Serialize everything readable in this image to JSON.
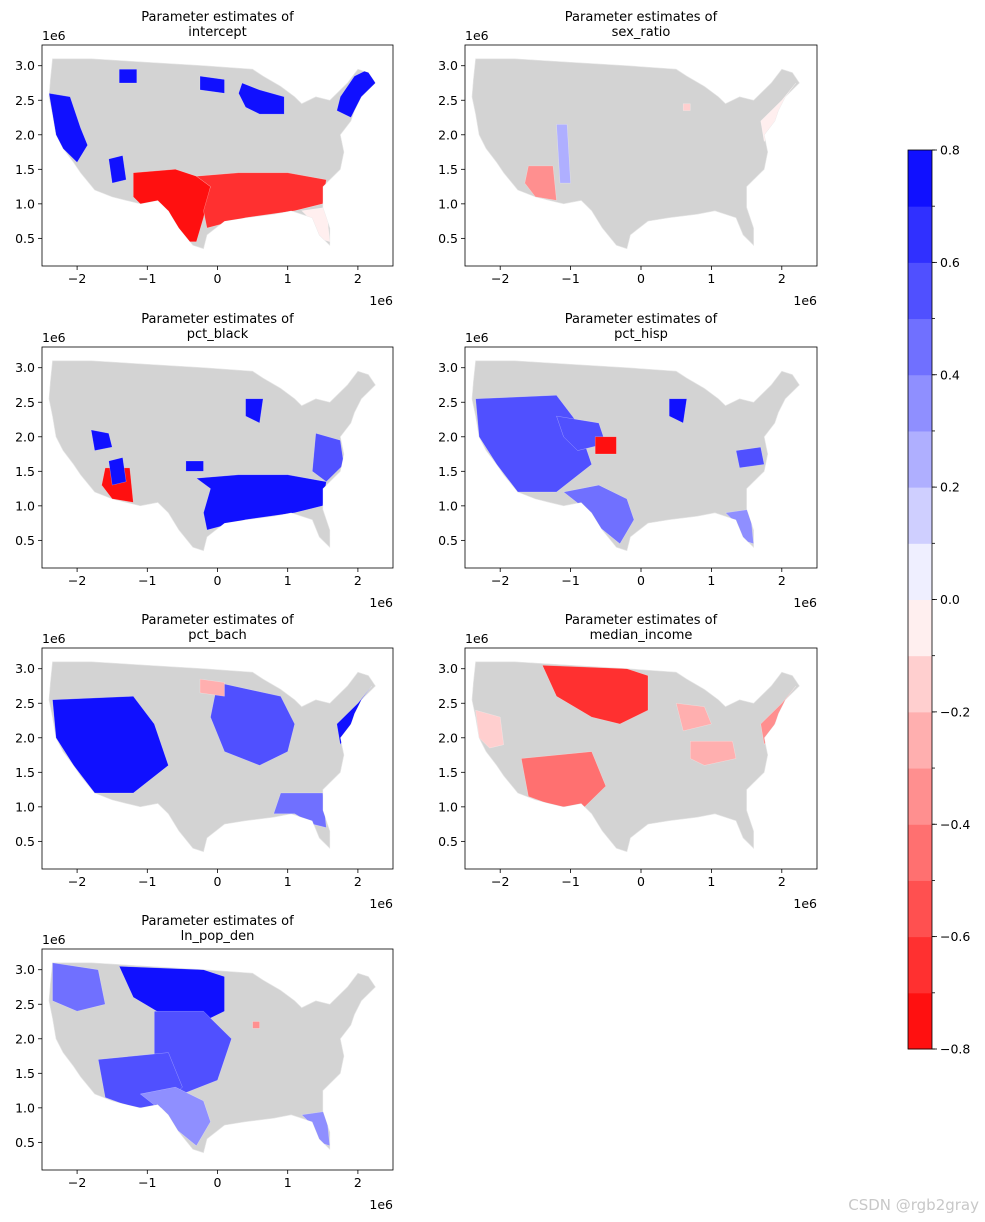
{
  "figure": {
    "watermark": "CSDN @rgb2gray",
    "colors": {
      "positive": "#0000ff",
      "negative": "#ff0000",
      "neutral": "#d3d3d3"
    }
  },
  "axes_common": {
    "x_ticks": [
      "−2",
      "−1",
      "0",
      "1",
      "2"
    ],
    "x_tick_values": [
      -2,
      -1,
      0,
      1,
      2
    ],
    "x_offset_label": "1e6",
    "xlim": [
      -2.5,
      2.5
    ],
    "y_ticks": [
      "0.5",
      "1.0",
      "1.5",
      "2.0",
      "2.5",
      "3.0"
    ],
    "y_tick_values": [
      0.5,
      1.0,
      1.5,
      2.0,
      2.5,
      3.0
    ],
    "y_offset_label": "1e6",
    "ylim": [
      0.1,
      3.3
    ]
  },
  "chart_data": [
    {
      "type": "choropleth",
      "id": "intercept",
      "title_line1": "Parameter estimates of",
      "title_line2": "intercept",
      "regions": [
        {
          "name": "south-central",
          "value": -0.8
        },
        {
          "name": "southeast",
          "value": -0.7
        },
        {
          "name": "florida",
          "value": -0.1
        },
        {
          "name": "california-oregon",
          "value": 0.8
        },
        {
          "name": "nevada-patch",
          "value": 0.8
        },
        {
          "name": "montana-patch",
          "value": 0.8
        },
        {
          "name": "dakota-patch",
          "value": 0.8
        },
        {
          "name": "great-lakes",
          "value": 0.8
        },
        {
          "name": "new-england",
          "value": 0.7
        }
      ]
    },
    {
      "type": "choropleth",
      "id": "sex_ratio",
      "title_line1": "Parameter estimates of",
      "title_line2": "sex_ratio",
      "regions": [
        {
          "name": "arizona",
          "value": -0.4
        },
        {
          "name": "colorado-nm-strip",
          "value": 0.2
        },
        {
          "name": "michigan-point",
          "value": -0.2
        },
        {
          "name": "northeast",
          "value": -0.05
        }
      ]
    },
    {
      "type": "choropleth",
      "id": "pct_black",
      "title_line1": "Parameter estimates of",
      "title_line2": "pct_black",
      "regions": [
        {
          "name": "southeast",
          "value": 0.7
        },
        {
          "name": "mid-atlantic",
          "value": 0.6
        },
        {
          "name": "arizona",
          "value": -0.8
        },
        {
          "name": "nevada-patch",
          "value": 0.8
        },
        {
          "name": "utah-patch",
          "value": 0.8
        },
        {
          "name": "kansas-patch",
          "value": 0.8
        },
        {
          "name": "wisconsin",
          "value": 0.7
        }
      ]
    },
    {
      "type": "choropleth",
      "id": "pct_hisp",
      "title_line1": "Parameter estimates of",
      "title_line2": "pct_hisp",
      "regions": [
        {
          "name": "west",
          "value": 0.5
        },
        {
          "name": "mountain",
          "value": 0.6
        },
        {
          "name": "texas",
          "value": 0.4
        },
        {
          "name": "nebraska",
          "value": -0.8
        },
        {
          "name": "wisconsin",
          "value": 0.8
        },
        {
          "name": "virginia",
          "value": 0.6
        },
        {
          "name": "florida",
          "value": 0.3
        }
      ]
    },
    {
      "type": "choropleth",
      "id": "pct_bach",
      "title_line1": "Parameter estimates of",
      "title_line2": "pct_bach",
      "regions": [
        {
          "name": "west",
          "value": 0.8
        },
        {
          "name": "great-lakes",
          "value": 0.5
        },
        {
          "name": "northeast",
          "value": 0.7
        },
        {
          "name": "southeast-coast",
          "value": 0.4
        },
        {
          "name": "dakota-patch",
          "value": -0.3
        }
      ]
    },
    {
      "type": "choropleth",
      "id": "median_income",
      "title_line1": "Parameter estimates of",
      "title_line2": "median_income",
      "regions": [
        {
          "name": "northern-plains",
          "value": -0.7
        },
        {
          "name": "southwest",
          "value": -0.5
        },
        {
          "name": "california",
          "value": -0.2
        },
        {
          "name": "northeast",
          "value": -0.4
        },
        {
          "name": "michigan",
          "value": -0.3
        },
        {
          "name": "ohio-valley",
          "value": -0.3
        }
      ]
    },
    {
      "type": "choropleth",
      "id": "ln_pop_den",
      "title_line1": "Parameter estimates of",
      "title_line2": "ln_pop_den",
      "regions": [
        {
          "name": "northern-plains",
          "value": 0.8
        },
        {
          "name": "great-plains",
          "value": 0.6
        },
        {
          "name": "northwest",
          "value": 0.4
        },
        {
          "name": "southwest",
          "value": 0.5
        },
        {
          "name": "texas",
          "value": 0.3
        },
        {
          "name": "florida",
          "value": 0.3
        },
        {
          "name": "wisconsin-point",
          "value": -0.4
        }
      ]
    }
  ],
  "colorbar": {
    "ticks": [
      "0.8",
      "0.6",
      "0.4",
      "0.2",
      "0.0",
      "−0.2",
      "−0.4",
      "−0.6",
      "−0.8"
    ],
    "tick_values": [
      0.8,
      0.6,
      0.4,
      0.2,
      0.0,
      -0.2,
      -0.4,
      -0.6,
      -0.8
    ],
    "range": [
      -0.8,
      0.8
    ],
    "levels": 16
  }
}
